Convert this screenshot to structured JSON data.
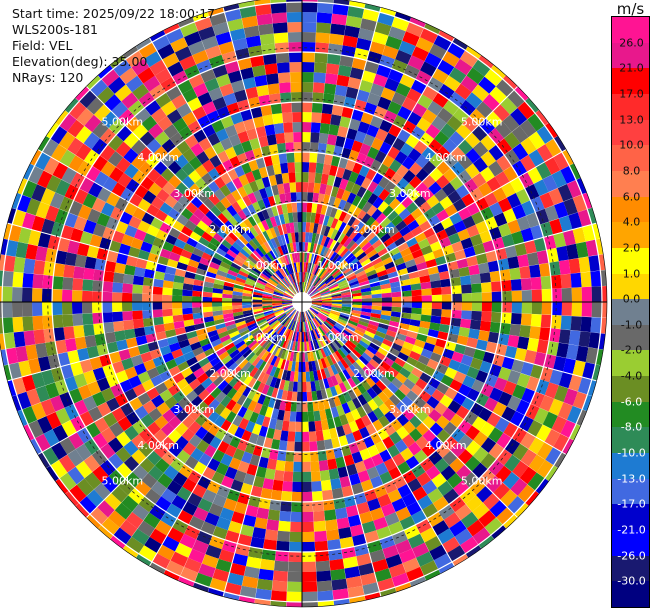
{
  "info": {
    "start_time": "Start time: 2025/09/22 18:00:17",
    "instrument": "WLS200s-181",
    "field": "Field: VEL",
    "elevation": "Elevation(deg): 35.00",
    "nrays": "NRays: 120"
  },
  "colorbar": {
    "unit": "m/s",
    "labels_top_to_bottom": [
      "26.0",
      "21.0",
      "17.0",
      "13.0",
      "10.0",
      "8.0",
      "6.0",
      "4.0",
      "2.0",
      "1.0",
      "0.0",
      "-1.0",
      "-2.0",
      "-4.0",
      "-6.0",
      "-8.0",
      "-10.0",
      "-13.0",
      "-17.0",
      "-21.0",
      "-26.0",
      "-30.0"
    ],
    "colors_top_to_bottom": [
      "#ff1493",
      "#e8188c",
      "#ff0000",
      "#ff2a2a",
      "#ff4040",
      "#ff6347",
      "#ff7f50",
      "#ff8c00",
      "#ffa500",
      "#ffff00",
      "#ffd700",
      "#708090",
      "#696969",
      "#9acd32",
      "#6b8e23",
      "#228b22",
      "#2e8b57",
      "#1e7bd2",
      "#4169e1",
      "#0000cd",
      "#0000ff",
      "#191970",
      "#000080"
    ]
  },
  "chart_data": {
    "type": "heatmap",
    "projection": "polar-ppi",
    "field": "VEL",
    "units": "m/s",
    "elevation_deg": 35.0,
    "n_rays": 120,
    "range_rings_km": [
      1,
      2,
      3,
      4,
      5
    ],
    "ring_labels": [
      "1.00km",
      "2.00km",
      "3.00km",
      "4.00km",
      "5.00km"
    ],
    "max_range_km": 6.0,
    "color_scale_ms": [
      -30,
      -26,
      -21,
      -17,
      -13,
      -10,
      -8,
      -6,
      -4,
      -2,
      -1,
      0,
      1,
      2,
      4,
      6,
      8,
      10,
      13,
      17,
      21,
      26,
      30
    ],
    "grid": true
  }
}
